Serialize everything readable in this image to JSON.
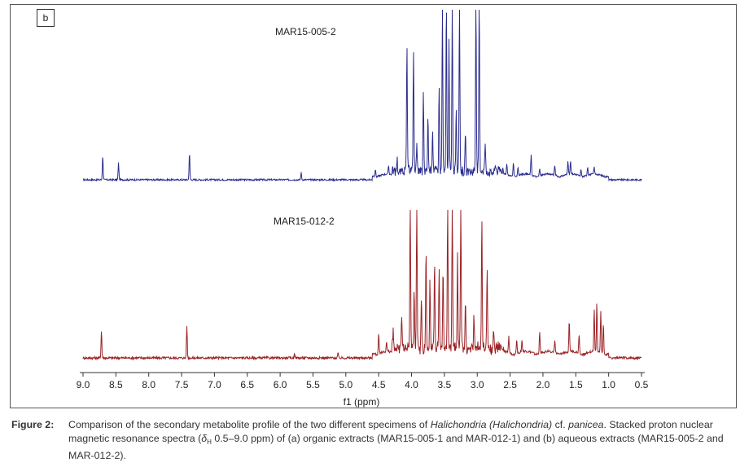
{
  "panel_label": "b",
  "chart_data": {
    "type": "line",
    "title": "",
    "xlabel": "f1 (ppm)",
    "ylabel": "",
    "xlim": [
      9.0,
      0.5
    ],
    "x_reversed": true,
    "xticks": [
      "9.0",
      "8.5",
      "8.0",
      "7.5",
      "7.0",
      "6.5",
      "6.0",
      "5.5",
      "5.0",
      "4.5",
      "4.0",
      "3.5",
      "3.0",
      "2.5",
      "2.0",
      "1.5",
      "1.0",
      "0.5"
    ],
    "grid": false,
    "series": [
      {
        "name": "MAR15-005-2",
        "color": "#2b2d8f",
        "baseline_noise": 0.012,
        "peaks": [
          {
            "ppm": 8.7,
            "h": 0.17
          },
          {
            "ppm": 8.46,
            "h": 0.12
          },
          {
            "ppm": 7.38,
            "h": 0.19
          },
          {
            "ppm": 5.68,
            "h": 0.05
          },
          {
            "ppm": 4.55,
            "h": 0.05
          },
          {
            "ppm": 4.35,
            "h": 0.06
          },
          {
            "ppm": 4.22,
            "h": 0.1
          },
          {
            "ppm": 4.07,
            "h": 0.88
          },
          {
            "ppm": 3.97,
            "h": 0.86
          },
          {
            "ppm": 3.92,
            "h": 0.22
          },
          {
            "ppm": 3.82,
            "h": 0.56
          },
          {
            "ppm": 3.75,
            "h": 0.38
          },
          {
            "ppm": 3.68,
            "h": 0.3
          },
          {
            "ppm": 3.58,
            "h": 0.62
          },
          {
            "ppm": 3.53,
            "h": 1.2
          },
          {
            "ppm": 3.47,
            "h": 1.2
          },
          {
            "ppm": 3.43,
            "h": 0.9
          },
          {
            "ppm": 3.38,
            "h": 1.2
          },
          {
            "ppm": 3.32,
            "h": 0.45
          },
          {
            "ppm": 3.27,
            "h": 1.2
          },
          {
            "ppm": 3.18,
            "h": 0.25
          },
          {
            "ppm": 3.02,
            "h": 1.2
          },
          {
            "ppm": 2.97,
            "h": 1.2
          },
          {
            "ppm": 2.88,
            "h": 0.2
          },
          {
            "ppm": 2.72,
            "h": 0.05
          },
          {
            "ppm": 2.55,
            "h": 0.08
          },
          {
            "ppm": 2.45,
            "h": 0.1
          },
          {
            "ppm": 2.38,
            "h": 0.06
          },
          {
            "ppm": 2.18,
            "h": 0.14
          },
          {
            "ppm": 2.05,
            "h": 0.05
          },
          {
            "ppm": 1.82,
            "h": 0.07
          },
          {
            "ppm": 1.62,
            "h": 0.1
          },
          {
            "ppm": 1.58,
            "h": 0.09
          },
          {
            "ppm": 1.42,
            "h": 0.05
          },
          {
            "ppm": 1.32,
            "h": 0.06
          },
          {
            "ppm": 1.22,
            "h": 0.05
          }
        ]
      },
      {
        "name": "MAR15-012-2",
        "color": "#9b2226",
        "baseline_noise": 0.015,
        "peaks": [
          {
            "ppm": 8.72,
            "h": 0.17
          },
          {
            "ppm": 7.42,
            "h": 0.2
          },
          {
            "ppm": 5.78,
            "h": 0.03
          },
          {
            "ppm": 5.12,
            "h": 0.03
          },
          {
            "ppm": 4.5,
            "h": 0.12
          },
          {
            "ppm": 4.38,
            "h": 0.06
          },
          {
            "ppm": 4.28,
            "h": 0.11
          },
          {
            "ppm": 4.15,
            "h": 0.2
          },
          {
            "ppm": 4.02,
            "h": 0.91
          },
          {
            "ppm": 3.96,
            "h": 0.35
          },
          {
            "ppm": 3.92,
            "h": 0.91
          },
          {
            "ppm": 3.85,
            "h": 0.32
          },
          {
            "ppm": 3.78,
            "h": 0.6
          },
          {
            "ppm": 3.72,
            "h": 0.4
          },
          {
            "ppm": 3.65,
            "h": 0.52
          },
          {
            "ppm": 3.58,
            "h": 0.46
          },
          {
            "ppm": 3.52,
            "h": 0.5
          },
          {
            "ppm": 3.45,
            "h": 0.91
          },
          {
            "ppm": 3.38,
            "h": 0.91
          },
          {
            "ppm": 3.3,
            "h": 0.56
          },
          {
            "ppm": 3.25,
            "h": 0.91
          },
          {
            "ppm": 3.18,
            "h": 0.3
          },
          {
            "ppm": 3.05,
            "h": 0.2
          },
          {
            "ppm": 2.93,
            "h": 0.8
          },
          {
            "ppm": 2.85,
            "h": 0.5
          },
          {
            "ppm": 2.75,
            "h": 0.12
          },
          {
            "ppm": 2.52,
            "h": 0.1
          },
          {
            "ppm": 2.4,
            "h": 0.09
          },
          {
            "ppm": 2.32,
            "h": 0.07
          },
          {
            "ppm": 2.05,
            "h": 0.14
          },
          {
            "ppm": 1.82,
            "h": 0.08
          },
          {
            "ppm": 1.6,
            "h": 0.2
          },
          {
            "ppm": 1.45,
            "h": 0.12
          },
          {
            "ppm": 1.22,
            "h": 0.26
          },
          {
            "ppm": 1.18,
            "h": 0.3
          },
          {
            "ppm": 1.12,
            "h": 0.25
          },
          {
            "ppm": 1.08,
            "h": 0.18
          }
        ]
      }
    ]
  },
  "caption": {
    "label": "Figure 2:",
    "line1_a": "Comparison of the secondary metabolite profile of the two different specimens of ",
    "line1_genus": "Halichondria (Halichondria)",
    "line1_b": " cf. ",
    "line1_species": "panicea",
    "line1_c": ". Stacked proton nuclear magnetic resonance spectra (",
    "delta": "δ",
    "delta_sub": "H",
    "line2_rest": " 0.5–9.0 ppm) of (a) organic extracts (MAR15-005-1 and MAR-012-1) and (b) aqueous extracts (MAR15-005-2 and MAR-012-2)."
  }
}
